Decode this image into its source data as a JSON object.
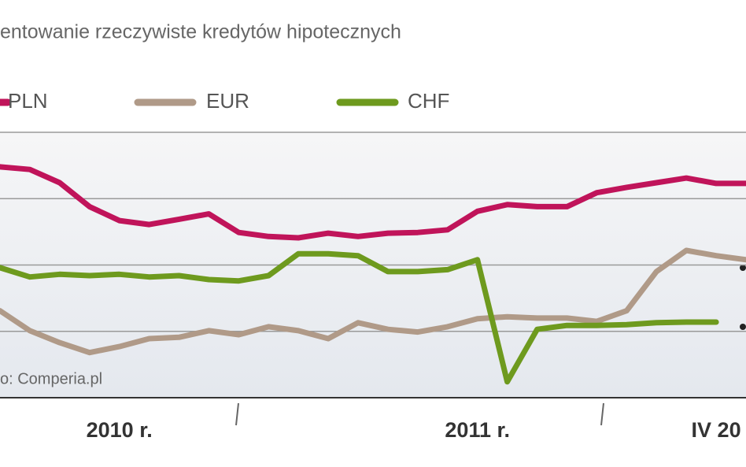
{
  "chart_data": {
    "type": "line",
    "title": "entowanie rzeczywiste kredytów hipotecznych",
    "source": "o: Comperia.pl",
    "categories": [
      null,
      null,
      null,
      null,
      "2010 r.",
      null,
      null,
      null,
      null,
      null,
      null,
      null,
      null,
      null,
      null,
      null,
      "2011 r.",
      null,
      null,
      null,
      null,
      null,
      null,
      null,
      "IV 20",
      null
    ],
    "series": [
      {
        "name": "PLN",
        "color": "#c0145a",
        "values": [
          7.48,
          7.44,
          7.24,
          6.88,
          6.67,
          6.61,
          6.69,
          6.77,
          6.49,
          6.43,
          6.41,
          6.48,
          6.43,
          6.48,
          6.49,
          6.53,
          6.81,
          6.91,
          6.88,
          6.88,
          7.09,
          7.17,
          7.24,
          7.31,
          7.23,
          7.23
        ]
      },
      {
        "name": "EUR",
        "color": "#b09a88",
        "values": [
          5.31,
          5.01,
          4.83,
          4.68,
          4.77,
          4.89,
          4.91,
          5.01,
          4.95,
          5.07,
          5.01,
          4.89,
          5.13,
          5.03,
          4.99,
          5.07,
          5.19,
          5.22,
          5.2,
          5.2,
          5.15,
          5.31,
          5.9,
          6.22,
          6.14,
          6.08
        ]
      },
      {
        "name": "CHF",
        "color": "#6e9a1e",
        "values": [
          5.96,
          5.82,
          5.86,
          5.84,
          5.86,
          5.82,
          5.84,
          5.78,
          5.76,
          5.84,
          6.17,
          6.17,
          6.14,
          5.9,
          5.9,
          5.93,
          6.08,
          4.24,
          5.03,
          5.09,
          5.09,
          5.1,
          5.13,
          5.14,
          5.14,
          null
        ]
      }
    ],
    "ylim": [
      4,
      8
    ],
    "gridlines": [
      5,
      6,
      7,
      8
    ],
    "grid": true
  }
}
